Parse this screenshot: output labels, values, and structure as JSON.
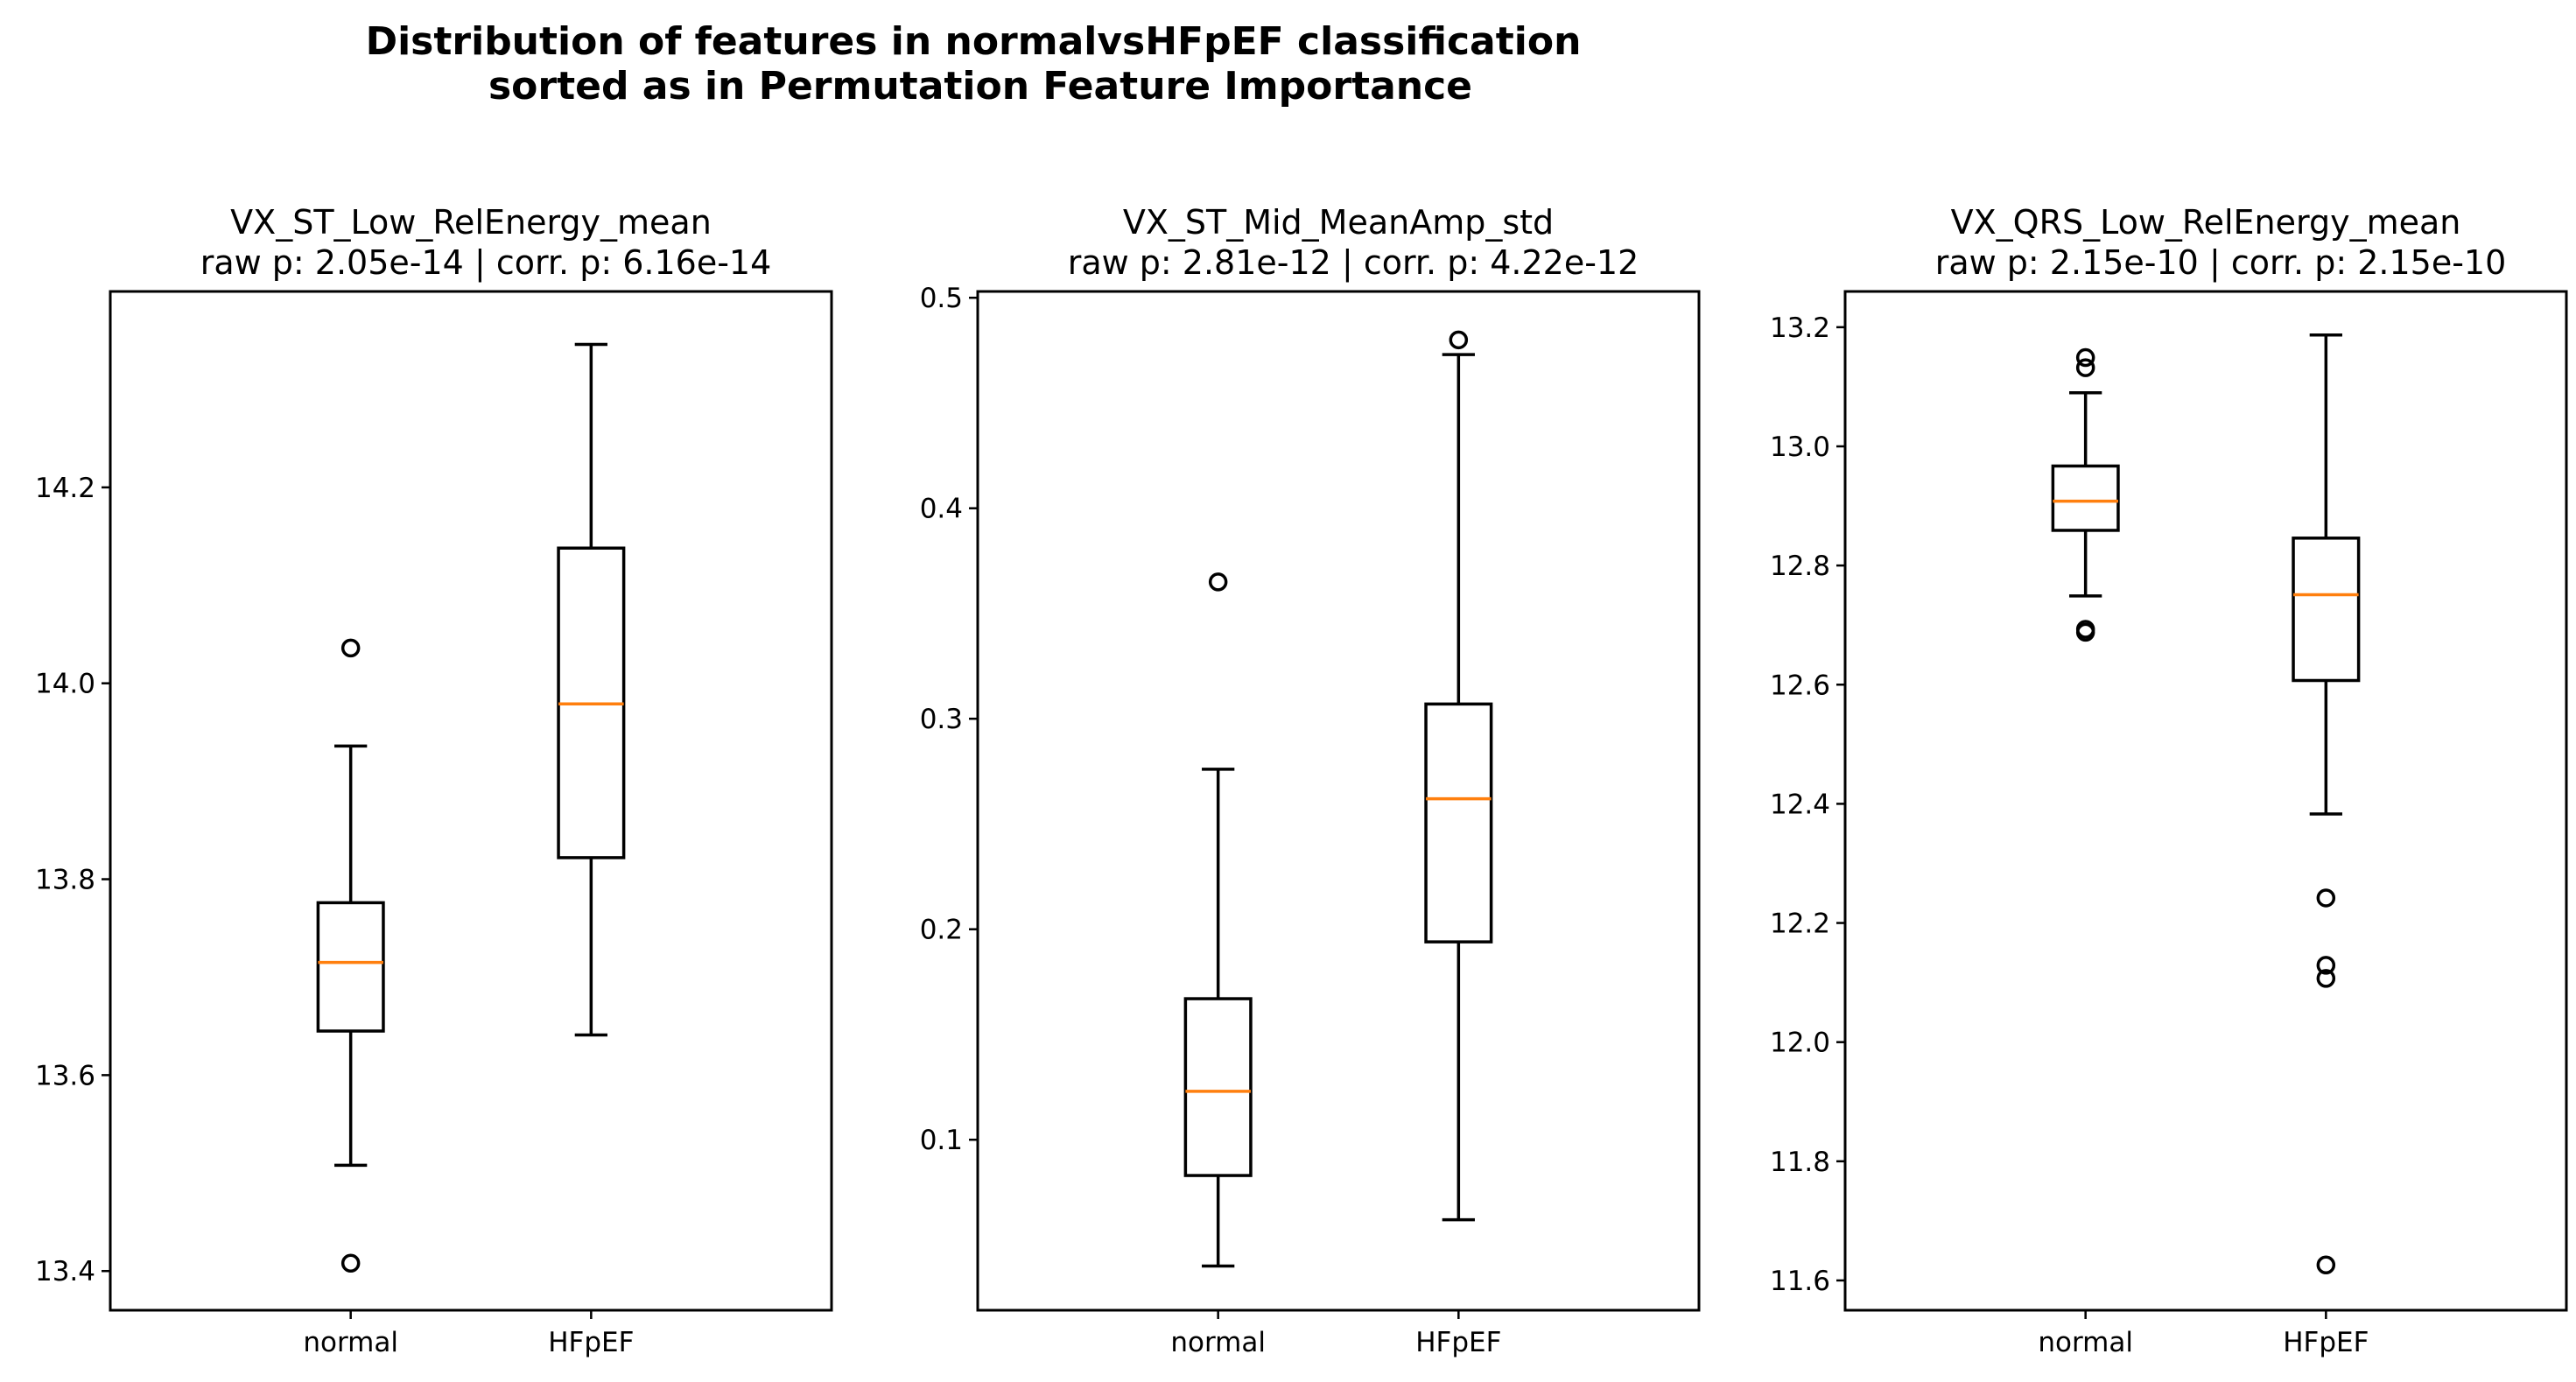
{
  "figure": {
    "title_line1": "Distribution of features in normalvsHFpEF classification",
    "title_line2": "sorted as in Permutation Feature Importance"
  },
  "colors": {
    "box": "#000000",
    "median": "#ff7f0e",
    "background": "#ffffff"
  },
  "chart_data": [
    {
      "type": "box",
      "title": "VX_ST_Low_RelEnergy_mean",
      "subtitle": "raw p: 2.05e-14 | corr. p: 6.16e-14",
      "categories": [
        "normal",
        "HFpEF"
      ],
      "ylim": [
        13.36,
        14.4
      ],
      "yticks": [
        13.4,
        13.6,
        13.8,
        14.0,
        14.2
      ],
      "ytick_labels": [
        "13.4",
        "13.6",
        "13.8",
        "14.0",
        "14.2"
      ],
      "grid": false,
      "series": [
        {
          "whisker_low": 13.508,
          "q1": 13.645,
          "median": 13.715,
          "q3": 13.776,
          "whisker_high": 13.936,
          "outliers": [
            14.036,
            13.408
          ]
        },
        {
          "whisker_low": 13.641,
          "q1": 13.822,
          "median": 13.979,
          "q3": 14.138,
          "whisker_high": 14.346,
          "outliers": []
        }
      ]
    },
    {
      "type": "box",
      "title": "VX_ST_Mid_MeanAmp_std",
      "subtitle": "raw p: 2.81e-12 | corr. p: 4.22e-12",
      "categories": [
        "normal",
        "HFpEF"
      ],
      "ylim": [
        0.019,
        0.503
      ],
      "yticks": [
        0.1,
        0.2,
        0.3,
        0.4,
        0.5
      ],
      "ytick_labels": [
        "0.1",
        "0.2",
        "0.3",
        "0.4",
        "0.5"
      ],
      "grid": false,
      "series": [
        {
          "whisker_low": 0.04,
          "q1": 0.083,
          "median": 0.123,
          "q3": 0.167,
          "whisker_high": 0.276,
          "outliers": [
            0.365
          ]
        },
        {
          "whisker_low": 0.062,
          "q1": 0.194,
          "median": 0.262,
          "q3": 0.307,
          "whisker_high": 0.473,
          "outliers": [
            0.48
          ]
        }
      ]
    },
    {
      "type": "box",
      "title": "VX_QRS_Low_RelEnergy_mean",
      "subtitle": "raw p: 2.15e-10 | corr. p: 2.15e-10",
      "categories": [
        "normal",
        "HFpEF"
      ],
      "ylim": [
        11.55,
        13.26
      ],
      "yticks": [
        11.6,
        11.8,
        12.0,
        12.2,
        12.4,
        12.6,
        12.8,
        13.0,
        13.2
      ],
      "ytick_labels": [
        "11.6",
        "11.8",
        "12.0",
        "12.2",
        "12.4",
        "12.6",
        "12.8",
        "13.0",
        "13.2"
      ],
      "grid": false,
      "series": [
        {
          "whisker_low": 12.749,
          "q1": 12.859,
          "median": 12.908,
          "q3": 12.967,
          "whisker_high": 13.09,
          "outliers": [
            13.149,
            13.132,
            12.693,
            12.688
          ]
        },
        {
          "whisker_low": 12.383,
          "q1": 12.607,
          "median": 12.751,
          "q3": 12.846,
          "whisker_high": 13.187,
          "outliers": [
            12.242,
            12.129,
            12.107,
            11.626
          ]
        }
      ]
    }
  ]
}
